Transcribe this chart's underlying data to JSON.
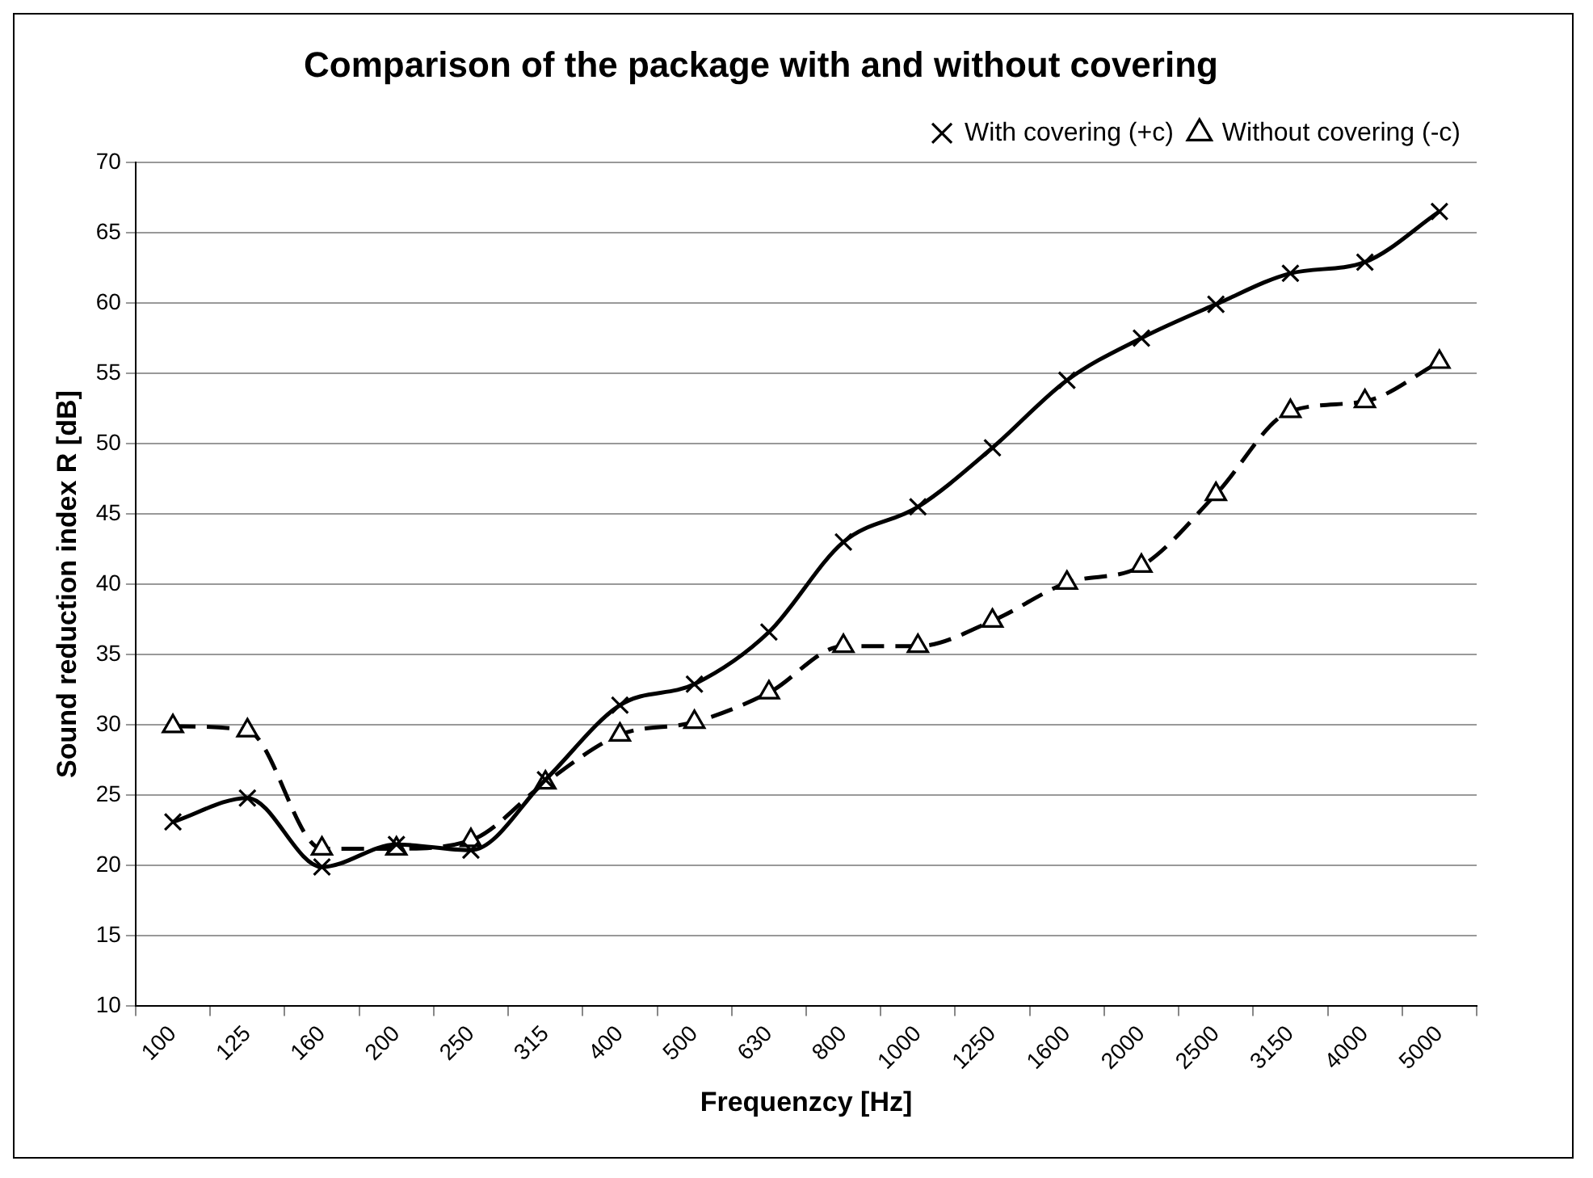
{
  "chart_data": {
    "type": "line",
    "title": "Comparison of the package with and without covering",
    "xlabel": "Frequenzcy [Hz]",
    "ylabel": "Sound reduction index R [dB]",
    "categories": [
      "100",
      "125",
      "160",
      "200",
      "250",
      "315",
      "400",
      "500",
      "630",
      "800",
      "1000",
      "1250",
      "1600",
      "2000",
      "2500",
      "3150",
      "4000",
      "5000"
    ],
    "series": [
      {
        "name": "With covering (+c)",
        "color": "#000000",
        "marker": "cross",
        "line_style": "solid",
        "values": [
          23.1,
          24.8,
          19.9,
          21.5,
          21.1,
          26.1,
          31.4,
          32.9,
          36.6,
          43,
          45.5,
          49.7,
          54.5,
          57.5,
          59.9,
          62.1,
          62.9,
          66.5
        ]
      },
      {
        "name": "Without covering (-c)",
        "color": "#000000",
        "marker": "triangle",
        "line_style": "dashed",
        "values": [
          29.9,
          29.6,
          21.2,
          21.2,
          21.8,
          25.9,
          29.3,
          30.2,
          32.3,
          35.6,
          35.6,
          37.4,
          40.1,
          41.3,
          46.4,
          52.3,
          53,
          55.8
        ]
      }
    ],
    "ylim": [
      10,
      70
    ],
    "yticks": [
      10,
      15,
      20,
      25,
      30,
      35,
      40,
      45,
      50,
      55,
      60,
      65,
      70
    ],
    "grid": "y",
    "legend": "top"
  }
}
